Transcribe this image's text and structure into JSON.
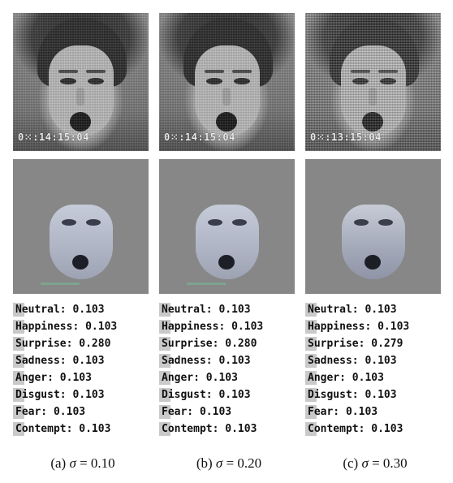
{
  "panels": [
    {
      "timestamp": "0⁙:14:15:04",
      "caption_prefix": "(a)",
      "caption_symbol": "σ",
      "caption_value": "= 0.10",
      "scores": [
        {
          "label": "Neutral:",
          "value": "0.103"
        },
        {
          "label": "Happiness:",
          "value": "0.103"
        },
        {
          "label": "Surprise:",
          "value": "0.280"
        },
        {
          "label": "Sadness:",
          "value": "0.103"
        },
        {
          "label": "Anger:",
          "value": "0.103"
        },
        {
          "label": "Disgust:",
          "value": "0.103"
        },
        {
          "label": "Fear:",
          "value": "0.103"
        },
        {
          "label": "Contempt:",
          "value": "0.103"
        }
      ]
    },
    {
      "timestamp": "0⁙:14:15:04",
      "caption_prefix": "(b)",
      "caption_symbol": "σ",
      "caption_value": "= 0.20",
      "scores": [
        {
          "label": "Neutral:",
          "value": "0.103"
        },
        {
          "label": "Happiness:",
          "value": "0.103"
        },
        {
          "label": "Surprise:",
          "value": "0.280"
        },
        {
          "label": "Sadness:",
          "value": "0.103"
        },
        {
          "label": "Anger:",
          "value": "0.103"
        },
        {
          "label": "Disgust:",
          "value": "0.103"
        },
        {
          "label": "Fear:",
          "value": "0.103"
        },
        {
          "label": "Contempt:",
          "value": "0.103"
        }
      ]
    },
    {
      "timestamp": "0⁙:13:15:04",
      "caption_prefix": "(c)",
      "caption_symbol": "σ",
      "caption_value": "= 0.30",
      "scores": [
        {
          "label": "Neutral:",
          "value": "0.103"
        },
        {
          "label": "Happiness:",
          "value": "0.103"
        },
        {
          "label": "Surprise:",
          "value": "0.279"
        },
        {
          "label": "Sadness:",
          "value": "0.103"
        },
        {
          "label": "Anger:",
          "value": "0.103"
        },
        {
          "label": "Disgust:",
          "value": "0.103"
        },
        {
          "label": "Fear:",
          "value": "0.103"
        },
        {
          "label": "Contempt:",
          "value": "0.103"
        }
      ]
    }
  ]
}
